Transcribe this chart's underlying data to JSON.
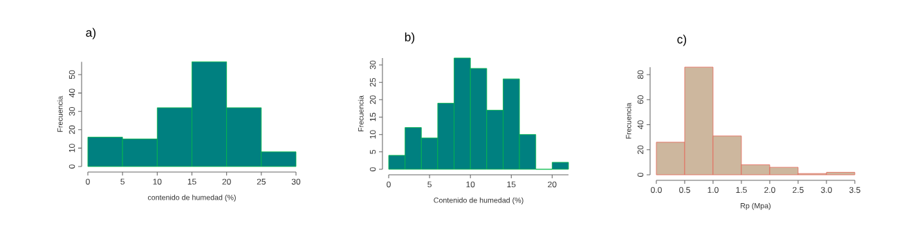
{
  "chart_data": [
    {
      "type": "histogram",
      "title": "a)",
      "xlabel": "contenido de humedad (%)",
      "ylabel": "Frecuencia",
      "bins": [
        0,
        5,
        10,
        15,
        20,
        25,
        30
      ],
      "values": [
        16,
        15,
        32,
        57,
        32,
        8
      ],
      "color": "#008080",
      "xlim": [
        0,
        30
      ],
      "ylim": [
        0,
        57
      ],
      "xticks": [
        0,
        5,
        10,
        15,
        20,
        25,
        30
      ],
      "yticks": [
        0,
        10,
        20,
        30,
        40,
        50
      ]
    },
    {
      "type": "histogram",
      "title": "b)",
      "xlabel": "Contenido de humedad (%)",
      "ylabel": "Frecuencia",
      "bins": [
        0,
        2,
        4,
        6,
        8,
        10,
        12,
        14,
        16,
        18,
        20,
        22
      ],
      "values": [
        4,
        12,
        9,
        19,
        32,
        29,
        17,
        26,
        10,
        0,
        2
      ],
      "color": "#008080",
      "xlim": [
        0,
        22
      ],
      "ylim": [
        0,
        32
      ],
      "xticks": [
        0,
        5,
        10,
        15,
        20
      ],
      "yticks": [
        0,
        5,
        10,
        15,
        20,
        25,
        30
      ]
    },
    {
      "type": "histogram",
      "title": "c)",
      "xlabel": "Rp (Mpa)",
      "ylabel": "Frecuencia",
      "bins": [
        0,
        0.5,
        1,
        1.5,
        2,
        2.5,
        3,
        3.5
      ],
      "values": [
        26,
        86,
        31,
        8,
        6,
        1,
        2
      ],
      "color": "#cdb79e",
      "xlim": [
        0,
        3.5
      ],
      "ylim": [
        0,
        86
      ],
      "xticks": [
        {
          "value": 0,
          "label": "0.0"
        },
        0.5,
        {
          "value": 1,
          "label": "1.0"
        },
        1.5,
        {
          "value": 2,
          "label": "2.0"
        },
        2.5,
        {
          "value": 3,
          "label": "3.0"
        },
        3.5
      ],
      "yticks": [
        0,
        20,
        40,
        60,
        80
      ]
    }
  ]
}
